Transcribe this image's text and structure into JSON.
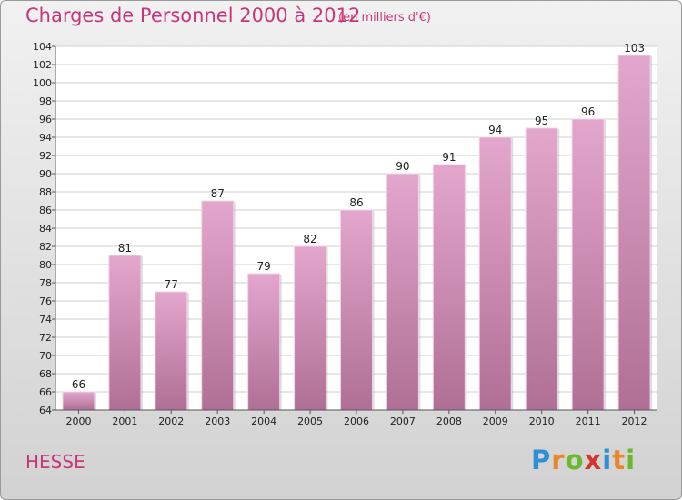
{
  "header": {
    "title": "Charges de Personnel 2000 à 2012",
    "subtitle": "(en milliers d'€)"
  },
  "footer": {
    "place": "HESSE",
    "logo": "Proxiti",
    "logo_colors": [
      "#2d8fd6",
      "#e9862a",
      "#6bb82e",
      "#d4352a",
      "#2d8fd6",
      "#e9862a",
      "#6bb82e"
    ]
  },
  "colors": {
    "bar_top": "#e3a6cc",
    "bar_bottom": "#b07096",
    "accent": "#c8367a"
  },
  "chart_data": {
    "type": "bar",
    "title": "Charges de Personnel 2000 à 2012",
    "subtitle": "(en milliers d'€)",
    "categories": [
      "2000",
      "2001",
      "2002",
      "2003",
      "2004",
      "2005",
      "2006",
      "2007",
      "2008",
      "2009",
      "2010",
      "2011",
      "2012"
    ],
    "values": [
      66,
      81,
      77,
      87,
      79,
      82,
      86,
      90,
      91,
      94,
      95,
      96,
      103
    ],
    "ylim": [
      64,
      104
    ],
    "yticks": [
      64,
      66,
      68,
      70,
      72,
      74,
      76,
      78,
      80,
      82,
      84,
      86,
      88,
      90,
      92,
      94,
      96,
      98,
      100,
      102,
      104
    ],
    "grid": true,
    "data_labels": true
  }
}
